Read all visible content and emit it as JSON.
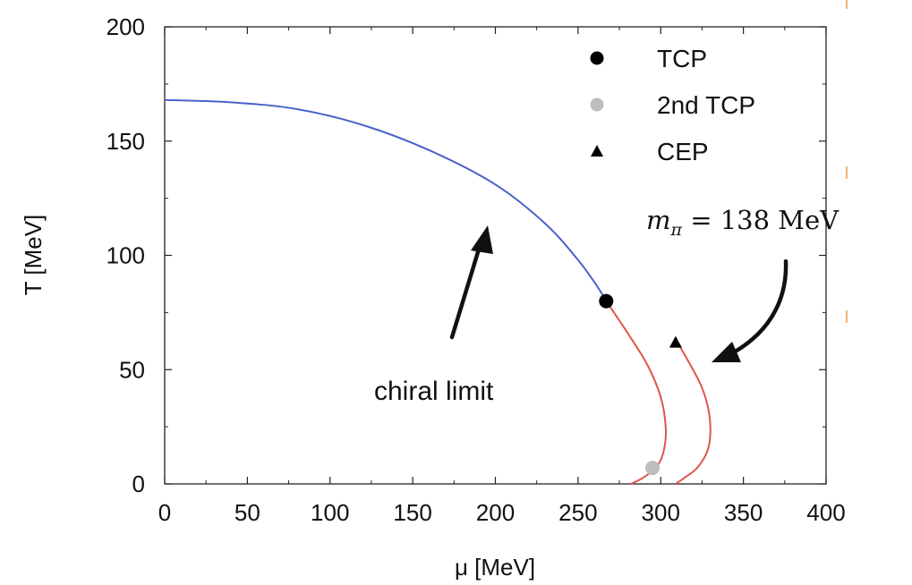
{
  "chart_data": {
    "type": "line",
    "xlabel": "μ [MeV]",
    "ylabel": "T [MeV]",
    "xlim": [
      0,
      400
    ],
    "ylim": [
      0,
      200
    ],
    "x_ticks": [
      0,
      50,
      100,
      150,
      200,
      250,
      300,
      350,
      400
    ],
    "y_ticks": [
      0,
      50,
      100,
      150,
      200
    ],
    "grid": false,
    "legend": {
      "placement": "top-right",
      "entries": [
        {
          "label": "TCP",
          "marker": "circle",
          "color": "#000000"
        },
        {
          "label": "2nd TCP",
          "marker": "circle",
          "color": "#bdbdbd"
        },
        {
          "label": "CEP",
          "marker": "triangle",
          "color": "#000000"
        }
      ]
    },
    "series": [
      {
        "style": "crossover",
        "color": "#4a62c8",
        "x": [
          0,
          40,
          80,
          120,
          160,
          200,
          230,
          250,
          262,
          267
        ],
        "y": [
          168,
          167,
          164,
          157,
          146,
          131,
          114,
          98,
          86,
          80
        ]
      },
      {
        "style": "first-order",
        "color": "#e0554a",
        "x": [
          267,
          280,
          292,
          300,
          303,
          302,
          298,
          290,
          282
        ],
        "y": [
          80,
          66,
          52,
          38,
          25,
          15,
          8,
          3,
          0
        ]
      },
      {
        "style": "first-order",
        "color": "#e0554a",
        "x": [
          310,
          318,
          325,
          329,
          330,
          328,
          322,
          315,
          309
        ],
        "y": [
          62,
          52,
          42,
          32,
          22,
          14,
          7,
          3,
          0
        ]
      }
    ],
    "points": [
      {
        "type": "TCP",
        "x": 267,
        "y": 80,
        "marker": "circle",
        "color": "#000000"
      },
      {
        "type": "2nd TCP",
        "x": 295,
        "y": 7,
        "marker": "circle",
        "color": "#bdbdbd"
      },
      {
        "type": "CEP",
        "x": 309,
        "y": 62,
        "marker": "triangle",
        "color": "#000000"
      }
    ],
    "annotations": [
      {
        "text": "chiral limit",
        "kind": "text"
      },
      {
        "text": "m",
        "sub": "π",
        "rest": " = 138 MeV",
        "kind": "math"
      }
    ]
  }
}
